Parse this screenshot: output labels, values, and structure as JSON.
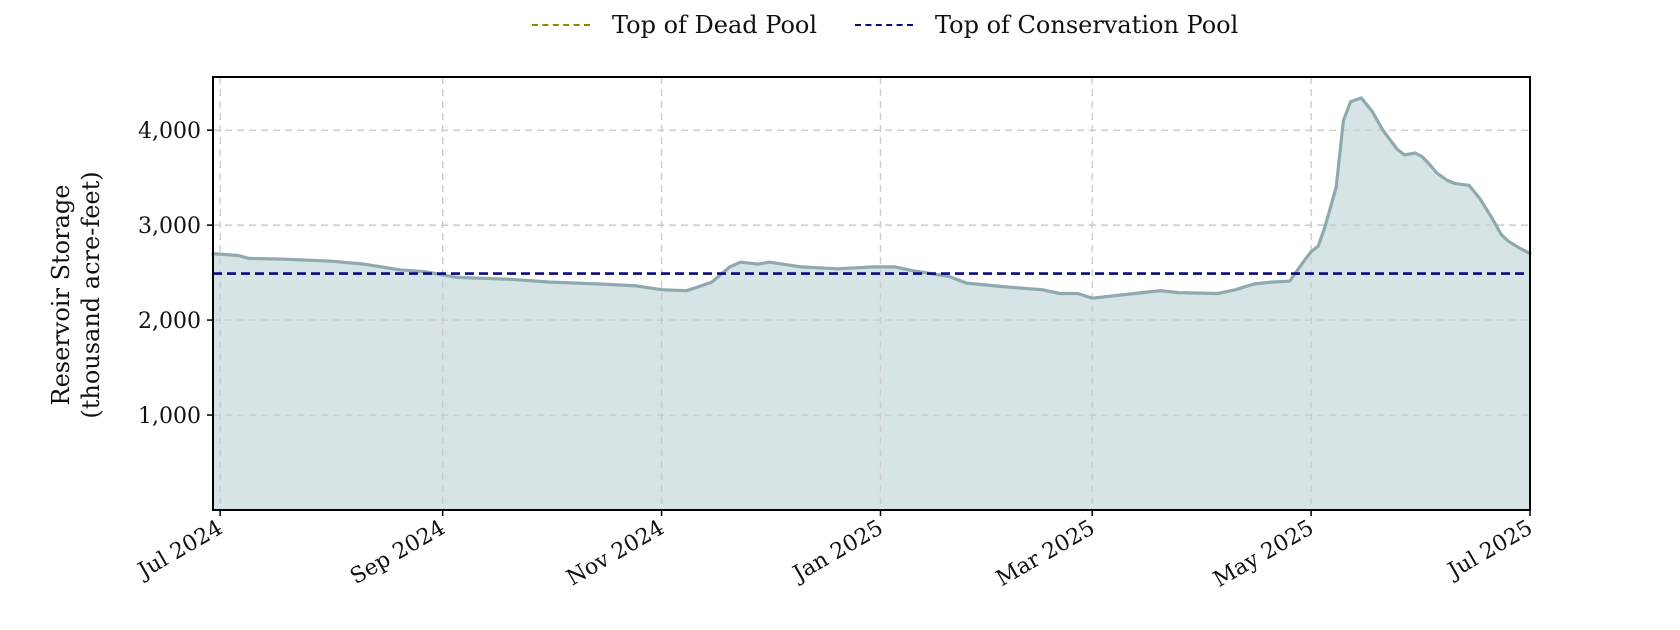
{
  "legend": {
    "dead_pool_label": "Top of Dead Pool",
    "conservation_pool_label": "Top of Conservation Pool"
  },
  "colors": {
    "dead_pool": "#8c8a00",
    "conservation_pool": "#0a0a80",
    "storage_line": "#8fa9ae",
    "storage_fill": "#d6e4e6",
    "grid": "#cccccc"
  },
  "chart_data": {
    "type": "area",
    "ylabel_line1": "Reservoir Storage",
    "ylabel_line2": "(thousand acre-feet)",
    "xlim": [
      "2024-06-29",
      "2025-07-01"
    ],
    "ylim": [
      0,
      4560
    ],
    "grid": true,
    "legend_position": "top-center",
    "x_ticks": [
      {
        "date": "2024-07-01",
        "label": "Jul 2024"
      },
      {
        "date": "2024-09-01",
        "label": "Sep 2024"
      },
      {
        "date": "2024-11-01",
        "label": "Nov 2024"
      },
      {
        "date": "2025-01-01",
        "label": "Jan 2025"
      },
      {
        "date": "2025-03-01",
        "label": "Mar 2025"
      },
      {
        "date": "2025-05-01",
        "label": "May 2025"
      },
      {
        "date": "2025-07-01",
        "label": "Jul 2025"
      }
    ],
    "y_ticks": [
      {
        "value": 1000,
        "label": "1,000"
      },
      {
        "value": 2000,
        "label": "2,000"
      },
      {
        "value": 3000,
        "label": "3,000"
      },
      {
        "value": 4000,
        "label": "4,000"
      }
    ],
    "reference_lines": [
      {
        "name": "Top of Conservation Pool",
        "value": 2490
      }
    ],
    "series": [
      {
        "x": [
          "2024-06-29",
          "2024-07-06",
          "2024-07-09",
          "2024-07-20",
          "2024-08-01",
          "2024-08-10",
          "2024-08-20",
          "2024-08-27",
          "2024-09-05",
          "2024-09-20",
          "2024-10-01",
          "2024-10-15",
          "2024-10-25",
          "2024-11-01",
          "2024-11-08",
          "2024-11-12",
          "2024-11-15",
          "2024-11-20",
          "2024-11-23",
          "2024-11-28",
          "2024-12-01",
          "2024-12-10",
          "2024-12-20",
          "2024-12-30",
          "2025-01-05",
          "2025-01-10",
          "2025-01-20",
          "2025-01-25",
          "2025-02-05",
          "2025-02-15",
          "2025-02-20",
          "2025-02-25",
          "2025-03-01",
          "2025-03-15",
          "2025-03-20",
          "2025-03-25",
          "2025-04-05",
          "2025-04-10",
          "2025-04-15",
          "2025-04-20",
          "2025-04-25",
          "2025-04-29",
          "2025-05-01",
          "2025-05-03",
          "2025-05-05",
          "2025-05-08",
          "2025-05-10",
          "2025-05-12",
          "2025-05-15",
          "2025-05-18",
          "2025-05-21",
          "2025-05-25",
          "2025-05-27",
          "2025-05-30",
          "2025-06-01",
          "2025-06-03",
          "2025-06-05",
          "2025-06-08",
          "2025-06-10",
          "2025-06-14",
          "2025-06-17",
          "2025-06-20",
          "2025-06-23",
          "2025-06-25",
          "2025-06-28",
          "2025-07-01"
        ],
        "values": [
          2700,
          2680,
          2650,
          2640,
          2620,
          2590,
          2530,
          2510,
          2450,
          2430,
          2400,
          2380,
          2360,
          2320,
          2310,
          2360,
          2400,
          2560,
          2610,
          2590,
          2610,
          2560,
          2540,
          2560,
          2560,
          2520,
          2460,
          2390,
          2350,
          2320,
          2280,
          2280,
          2230,
          2290,
          2310,
          2290,
          2280,
          2320,
          2380,
          2400,
          2410,
          2620,
          2720,
          2780,
          3000,
          3400,
          4100,
          4300,
          4340,
          4200,
          4000,
          3800,
          3740,
          3760,
          3720,
          3640,
          3550,
          3470,
          3440,
          3420,
          3280,
          3100,
          2900,
          2830,
          2760,
          2700
        ]
      }
    ]
  }
}
